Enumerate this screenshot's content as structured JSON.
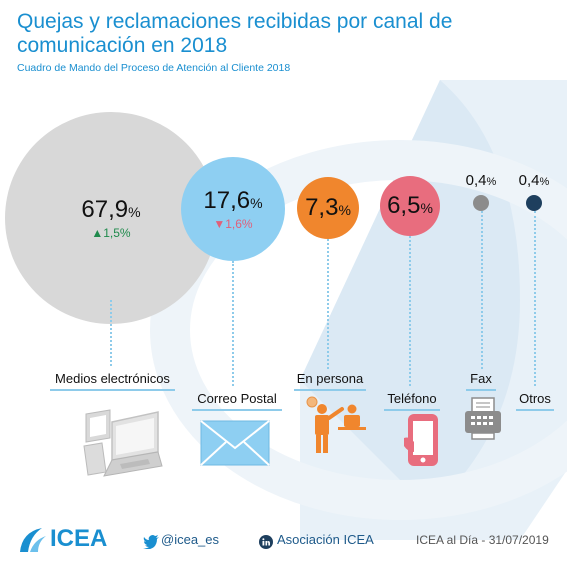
{
  "header": {
    "title": "Quejas y reclamaciones recibidas por canal de comunicación en 2018",
    "subtitle": "Cuadro de Mando del Proceso de Atención al Cliente 2018"
  },
  "chart_data": {
    "type": "bubble",
    "title": "Quejas y reclamaciones recibidas por canal de comunicación en 2018",
    "subtitle": "Cuadro de Mando del Proceso de Atención al Cliente 2018",
    "unit": "%",
    "categories": [
      "Medios electrónicos",
      "Correo Postal",
      "En persona",
      "Teléfono",
      "Fax",
      "Otros"
    ],
    "values": [
      67.9,
      17.6,
      7.3,
      6.5,
      0.4,
      0.4
    ],
    "value_labels": [
      "67,9",
      "17,6",
      "7,3",
      "6,5",
      "0,4",
      "0,4"
    ],
    "changes": [
      {
        "direction": "up",
        "label": "▲1,5%",
        "value": 1.5
      },
      {
        "direction": "down",
        "label": "▼1,6%",
        "value": -1.6
      }
    ],
    "colors": [
      "#d8d8d8",
      "#8ecff2",
      "#f0862d",
      "#e86d7e",
      "#8c8c8c",
      "#1e3f5e"
    ]
  },
  "labels": {
    "medios_pct": "67,9",
    "medios_change": "▲1,5%",
    "correo_pct": "17,6",
    "correo_change": "▼1,6%",
    "persona_pct": "7,3",
    "telefono_pct": "6,5",
    "fax_pct": "0,4",
    "otros_pct": "0,4",
    "pct_symbol": "%"
  },
  "categories": {
    "medios": "Medios electrónicos",
    "correo": "Correo Postal",
    "persona": "En persona",
    "telefono": "Teléfono",
    "fax": "Fax",
    "otros": "Otros"
  },
  "footer": {
    "logo_text": "ICEA",
    "twitter": "@icea_es",
    "linkedin": "Asociación ICEA",
    "date": "ICEA al Día - 31/07/2019"
  },
  "icons": [
    "laptop-icon",
    "envelope-icon",
    "person-desk-icon",
    "phone-icon",
    "fax-icon",
    "twitter-icon",
    "linkedin-icon",
    "icea-logo-icon"
  ]
}
